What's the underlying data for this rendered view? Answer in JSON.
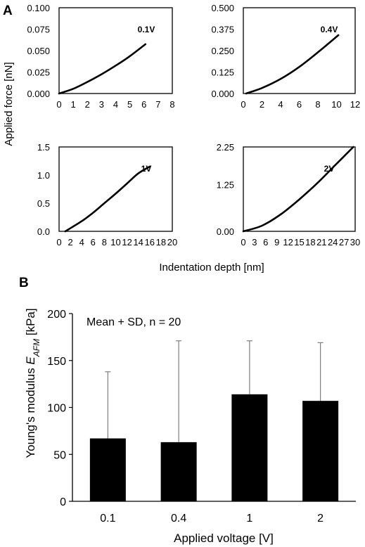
{
  "panel_a": {
    "letter": "A",
    "y_title": "Applied force [nN]",
    "x_title": "Indentation depth [nm]"
  },
  "panel_b": {
    "letter": "B",
    "y_title_prefix": "Young's modulus ",
    "y_title_symbol": "E",
    "y_title_subscript": "AFM",
    "y_title_suffix": " [kPa]",
    "x_title": "Applied voltage [V]",
    "annotation": "Mean + SD, n = 20"
  },
  "chart_data": [
    {
      "type": "line",
      "panel": "A",
      "label": "0.1V",
      "xlim": [
        0,
        8
      ],
      "ylim": [
        0,
        0.1
      ],
      "x_ticks": [
        "0",
        "1",
        "2",
        "3",
        "4",
        "5",
        "6",
        "7",
        "8"
      ],
      "y_ticks": [
        "0.000",
        "0.025",
        "0.050",
        "0.075",
        "0.100"
      ],
      "series": [
        {
          "x": [
            0,
            1,
            2,
            3,
            4,
            5,
            6.1
          ],
          "y": [
            0,
            0.0055,
            0.0135,
            0.0225,
            0.0325,
            0.0435,
            0.0575
          ]
        }
      ]
    },
    {
      "type": "line",
      "panel": "A",
      "label": "0.4V",
      "xlim": [
        0,
        12
      ],
      "ylim": [
        0,
        0.5
      ],
      "x_ticks": [
        "0",
        "2",
        "4",
        "6",
        "8",
        "10",
        "12"
      ],
      "y_ticks": [
        "0.000",
        "0.125",
        "0.250",
        "0.375",
        "0.500"
      ],
      "series": [
        {
          "x": [
            0.3,
            2,
            4,
            6,
            8,
            10.2
          ],
          "y": [
            0,
            0.032,
            0.085,
            0.155,
            0.24,
            0.34
          ]
        }
      ]
    },
    {
      "type": "line",
      "panel": "A",
      "label": "1V",
      "xlim": [
        0,
        20
      ],
      "ylim": [
        0,
        1.5
      ],
      "x_ticks": [
        "0",
        "2",
        "4",
        "6",
        "8",
        "10",
        "12",
        "14",
        "16",
        "18",
        "20"
      ],
      "y_ticks": [
        "0.0",
        "0.5",
        "1.0",
        "1.5"
      ],
      "series": [
        {
          "x": [
            1.1,
            4,
            6,
            8,
            10,
            12,
            14,
            16
          ],
          "y": [
            0,
            0.18,
            0.33,
            0.5,
            0.67,
            0.85,
            1.03,
            1.15
          ]
        }
      ]
    },
    {
      "type": "line",
      "panel": "A",
      "label": "2V",
      "xlim": [
        0,
        30
      ],
      "ylim": [
        0,
        2.25
      ],
      "x_ticks": [
        "0",
        "3",
        "6",
        "9",
        "12",
        "15",
        "18",
        "21",
        "24",
        "27",
        "30"
      ],
      "y_ticks": [
        "0.00",
        "1.25",
        "2.25"
      ],
      "series": [
        {
          "x": [
            0,
            5,
            10,
            15,
            20,
            25,
            29.5
          ],
          "y": [
            0,
            0.15,
            0.45,
            0.85,
            1.3,
            1.8,
            2.25
          ]
        }
      ]
    },
    {
      "type": "bar",
      "panel": "B",
      "categories": [
        "0.1",
        "0.4",
        "1",
        "2"
      ],
      "values": [
        67,
        63,
        114,
        107
      ],
      "error_sd": [
        71,
        108,
        57,
        62
      ],
      "ylim": [
        0,
        200
      ],
      "y_ticks": [
        "0",
        "50",
        "100",
        "150",
        "200"
      ],
      "bar_color": "#000000",
      "error_color": "#7f7f7f"
    }
  ]
}
